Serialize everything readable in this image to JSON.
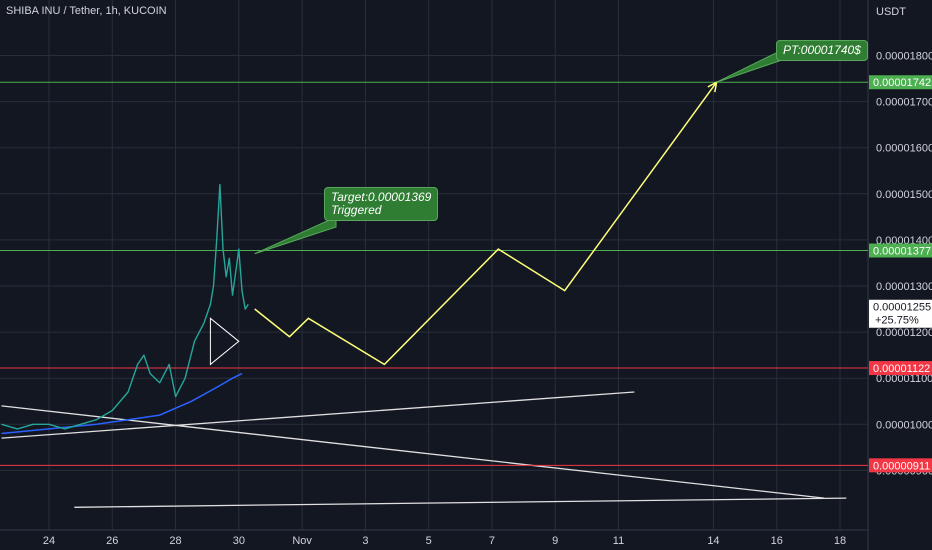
{
  "header": {
    "symbol": "SHIBA INU / Tether, 1h, KUCOIN",
    "currency": "USDT"
  },
  "colors": {
    "background": "#131722",
    "grid": "#2a2e39",
    "text": "#d1d4dc",
    "up": "#26a69a",
    "down": "#ef5350",
    "support_green": "#4caf50",
    "resistance_red": "#f23645",
    "projection": "#ffff7a",
    "moving_average": "#2962ff",
    "trendline": "#e0e0e0",
    "callout_bg": "#2e7d32"
  },
  "chart_data": {
    "type": "line",
    "y_axis": {
      "min": 8.6e-06,
      "max": 1.92e-05,
      "ticks": [
        "0.00001800",
        "0.00001700",
        "0.00001600",
        "0.00001500",
        "0.00001400",
        "0.00001300",
        "0.00001200",
        "0.00001100",
        "0.00001000",
        "0.00000900"
      ],
      "tick_values": [
        1.8e-05,
        1.7e-05,
        1.6e-05,
        1.5e-05,
        1.4e-05,
        1.3e-05,
        1.2e-05,
        1.1e-05,
        1e-05,
        9e-06
      ]
    },
    "x_axis": {
      "labels": [
        "24",
        "26",
        "28",
        "30",
        "Nov",
        "3",
        "5",
        "7",
        "9",
        "11",
        "14",
        "16",
        "18"
      ],
      "label_days": [
        24,
        26,
        28,
        30,
        32,
        34,
        36,
        38,
        40,
        42,
        45,
        47,
        49
      ]
    },
    "horizontal_levels": [
      {
        "value": 1.742e-05,
        "label": "0.00001742",
        "color": "#4caf50"
      },
      {
        "value": 1.377e-05,
        "label": "0.00001377",
        "color": "#4caf50"
      },
      {
        "value": 1.122e-05,
        "label": "0.00001122",
        "color": "#f23645"
      },
      {
        "value": 9.11e-06,
        "label": "0.00000911",
        "color": "#f23645"
      }
    ],
    "last_price": {
      "value": 1.255e-05,
      "label": "0.00001255",
      "change": "+25.75%"
    },
    "price_path": {
      "day": [
        22.5,
        23,
        23.5,
        24,
        24.5,
        25,
        25.5,
        26,
        26.5,
        26.8,
        27,
        27.2,
        27.5,
        27.8,
        28,
        28.3,
        28.6,
        28.9,
        29.1,
        29.2,
        29.3,
        29.4,
        29.5,
        29.6,
        29.7,
        29.8,
        29.9,
        30,
        30.1,
        30.2,
        30.3
      ],
      "close": [
        1e-05,
        9.9e-06,
        1e-05,
        1e-05,
        9.9e-06,
        1e-05,
        1.01e-05,
        1.03e-05,
        1.07e-05,
        1.13e-05,
        1.15e-05,
        1.11e-05,
        1.09e-05,
        1.13e-05,
        1.06e-05,
        1.1e-05,
        1.18e-05,
        1.22e-05,
        1.26e-05,
        1.3e-05,
        1.4e-05,
        1.52e-05,
        1.38e-05,
        1.32e-05,
        1.36e-05,
        1.28e-05,
        1.33e-05,
        1.38e-05,
        1.29e-05,
        1.25e-05,
        1.26e-05
      ]
    },
    "moving_average": {
      "day": [
        22.5,
        24,
        25.5,
        26.5,
        27.5,
        28.5,
        29.3,
        29.8,
        30.1
      ],
      "value": [
        9.8e-06,
        9.9e-06,
        1e-05,
        1.01e-05,
        1.02e-05,
        1.05e-05,
        1.08e-05,
        1.1e-05,
        1.11e-05
      ]
    },
    "projection": {
      "day": [
        30.5,
        31.6,
        32.2,
        34.6,
        38.2,
        40.3,
        45.1
      ],
      "value": [
        1.25e-05,
        1.19e-05,
        1.23e-05,
        1.13e-05,
        1.38e-05,
        1.29e-05,
        1.742e-05
      ]
    },
    "triangle": {
      "day": [
        29.1,
        29.1,
        30
      ],
      "value": [
        1.23e-05,
        1.13e-05,
        1.18e-05
      ]
    },
    "trendlines": [
      {
        "day": [
          22.5,
          42.5
        ],
        "value": [
          9.7e-06,
          1.07e-05
        ]
      },
      {
        "day": [
          22.5,
          48.5
        ],
        "value": [
          1.04e-05,
          8.4e-06
        ]
      },
      {
        "day": [
          24.8,
          49.2
        ],
        "value": [
          8.2e-06,
          8.4e-06
        ]
      }
    ],
    "annotations": [
      {
        "lines": [
          "PT:00001740$"
        ],
        "points_to_day": 45.1,
        "points_to_value": 1.742e-05
      },
      {
        "lines": [
          "Target:0.00001369",
          "Triggered"
        ],
        "points_to_day": 30.5,
        "points_to_value": 1.37e-05
      }
    ]
  }
}
